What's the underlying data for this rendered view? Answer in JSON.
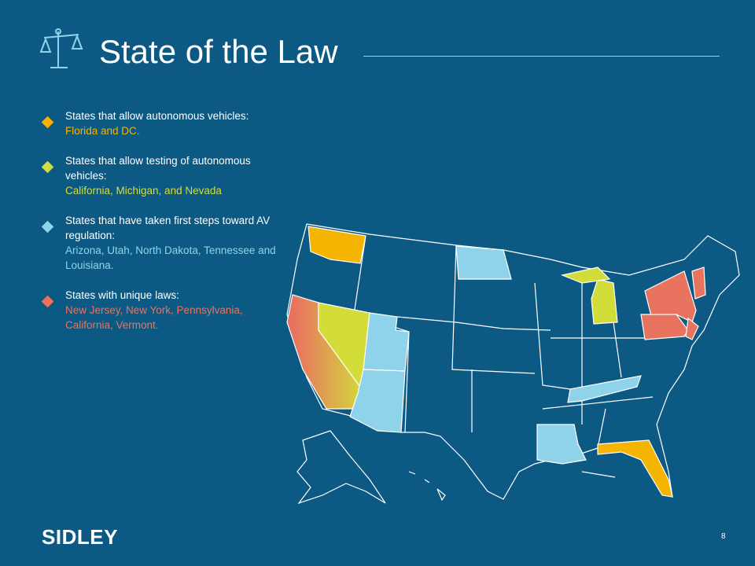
{
  "header": {
    "title": "State of the Law"
  },
  "legend": [
    {
      "label": "States that allow autonomous vehicles:",
      "states": "Florida and DC.",
      "color": "#f5b400"
    },
    {
      "label": "States that allow testing of autonomous vehicles:",
      "states": "California, Michigan, and Nevada",
      "color": "#d3dd3a"
    },
    {
      "label": "States that have taken first steps toward AV regulation:",
      "states": "Arizona, Utah, North Dakota, Tennessee and Louisiana.",
      "color": "#8fd3ea"
    },
    {
      "label": "States with unique laws:",
      "states": "New Jersey, New York, Pennsylvania, California, Vermont.",
      "color": "#e8735f"
    }
  ],
  "footer": {
    "logo": "SIDLEY",
    "page": "8"
  }
}
